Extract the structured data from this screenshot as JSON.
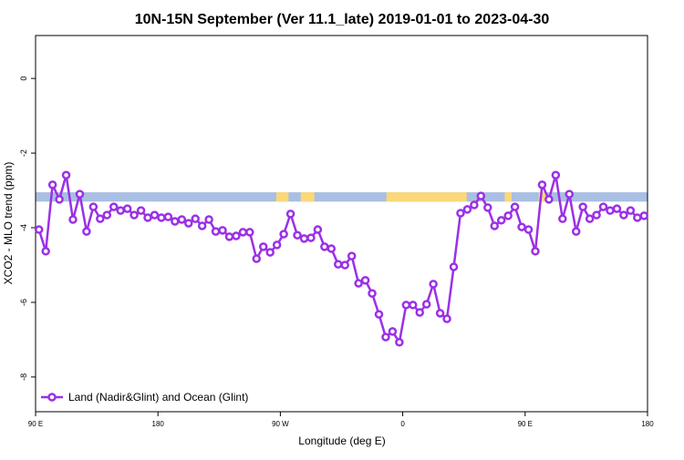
{
  "chart_data": {
    "type": "line",
    "title": "10N-15N September (Ver 11.1_late)   2019-01-01 to 2023-04-30",
    "xlabel": "Longitude (deg E)",
    "ylabel": "XCO2 - MLO trend (ppm)",
    "xlim": [
      90,
      540
    ],
    "ylim": [
      -8.93,
      1.15
    ],
    "xticks": [
      {
        "value": 90,
        "label": "90 E"
      },
      {
        "value": 180,
        "label": "180"
      },
      {
        "value": 270,
        "label": "90 W"
      },
      {
        "value": 360,
        "label": "0"
      },
      {
        "value": 450,
        "label": "90 E"
      },
      {
        "value": 540,
        "label": "180"
      }
    ],
    "yticks": [
      -8,
      -6,
      -4,
      -2,
      0
    ],
    "legend": "bottom-left",
    "band": {
      "ylim": [
        -3.3,
        -3.05
      ],
      "color": "#a9bfe3",
      "land_color": "#fbd879",
      "land": [
        [
          267,
          276
        ],
        [
          285,
          295
        ],
        [
          348,
          407
        ],
        [
          435,
          440
        ],
        [
          460,
          466
        ]
      ]
    },
    "series": [
      {
        "name": "Land (Nadir&Glint) and Ocean (Glint)",
        "color": "#9b30e6",
        "x": [
          92.5,
          97.5,
          102.5,
          107.5,
          112.5,
          117.5,
          122.5,
          127.5,
          132.5,
          137.5,
          142.5,
          147.5,
          152.5,
          157.5,
          162.5,
          167.5,
          172.5,
          177.5,
          182.5,
          187.5,
          192.5,
          197.5,
          202.5,
          207.5,
          212.5,
          217.5,
          222.5,
          227.5,
          232.5,
          237.5,
          242.5,
          247.5,
          252.5,
          257.5,
          262.5,
          267.5,
          272.5,
          277.5,
          282.5,
          287.5,
          292.5,
          297.5,
          302.5,
          307.5,
          312.5,
          317.5,
          322.5,
          327.5,
          332.5,
          337.5,
          342.5,
          347.5,
          352.5,
          357.5,
          362.5,
          367.5,
          372.5,
          377.5,
          382.5,
          387.5,
          392.5,
          397.5,
          402.5,
          407.5,
          412.5,
          417.5,
          422.5,
          427.5,
          432.5,
          437.5,
          442.5,
          447.5,
          452.5,
          457.5,
          462.5,
          467.5,
          472.5,
          477.5,
          482.5,
          487.5,
          492.5,
          497.5,
          502.5,
          507.5,
          512.5,
          517.5,
          522.5,
          527.5,
          532.5,
          537.5
        ],
        "values": [
          -4.05,
          -4.63,
          -2.85,
          -3.24,
          -2.59,
          -3.78,
          -3.1,
          -4.1,
          -3.44,
          -3.76,
          -3.66,
          -3.44,
          -3.54,
          -3.49,
          -3.66,
          -3.54,
          -3.73,
          -3.66,
          -3.73,
          -3.71,
          -3.83,
          -3.78,
          -3.88,
          -3.76,
          -3.95,
          -3.78,
          -4.1,
          -4.07,
          -4.24,
          -4.22,
          -4.12,
          -4.12,
          -4.83,
          -4.51,
          -4.66,
          -4.46,
          -4.17,
          -3.63,
          -4.2,
          -4.29,
          -4.27,
          -4.05,
          -4.51,
          -4.56,
          -4.98,
          -5.0,
          -4.76,
          -5.49,
          -5.41,
          -5.76,
          -6.32,
          -6.93,
          -6.78,
          -7.07,
          -6.07,
          -6.07,
          -6.27,
          -6.05,
          -5.51,
          -6.29,
          -6.44,
          -5.05,
          -3.61,
          -3.51,
          -3.39,
          -3.15,
          -3.46,
          -3.95,
          -3.8,
          -3.68,
          -3.44,
          -3.98,
          -4.05,
          -4.63,
          -2.85,
          -3.24,
          -2.59,
          -3.76,
          -3.1,
          -4.1,
          -3.44,
          -3.76,
          -3.66,
          -3.44,
          -3.54,
          -3.49,
          -3.66,
          -3.54,
          -3.73,
          -3.68
        ]
      }
    ]
  }
}
